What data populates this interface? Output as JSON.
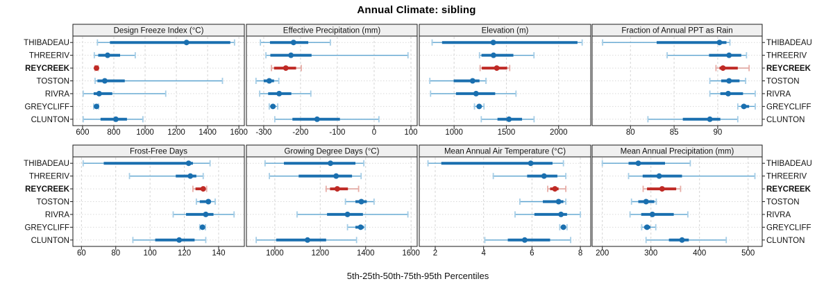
{
  "title": "Annual Climate: sibling",
  "caption": "5th-25th-50th-75th-95th Percentiles",
  "sites": [
    "THIBADEAU",
    "THREERIV",
    "REYCREEK",
    "TOSTON",
    "RIVRA",
    "GREYCLIFF",
    "CLUNTON"
  ],
  "highlight_site": "REYCREEK",
  "colors": {
    "normal": {
      "line": "#5ba3cf",
      "cap": "#a5cde6",
      "bar": "#1a6faf",
      "dot": "#1a6faf"
    },
    "highlight": {
      "line": "#d9938c",
      "cap": "#e7aca6",
      "bar": "#bf2a25",
      "dot": "#bf2a25"
    },
    "strip_bg": "#f0f0f0",
    "grid": "#d4d4d4",
    "row_guide": "#d9d9d9",
    "border": "#1a1a1a"
  },
  "chart_data": {
    "type": "scatter",
    "variant": "percentile-interval-dotplot",
    "percentiles": [
      5,
      25,
      50,
      75,
      95
    ],
    "rows": [
      "THIBADEAU",
      "THREERIV",
      "REYCREEK",
      "TOSTON",
      "RIVRA",
      "GREYCLIFF",
      "CLUNTON"
    ],
    "panels": [
      {
        "title": "Design Freeze Index (°C)",
        "grid_row": 0,
        "grid_col": 0,
        "xlim": [
          538,
          1635
        ],
        "ticks": [
          600,
          800,
          1000,
          1200,
          1400,
          1600
        ],
        "values": {
          "THIBADEAU": [
            695,
            775,
            1265,
            1545,
            1572
          ],
          "THREERIV": [
            675,
            700,
            760,
            840,
            937
          ],
          "REYCREEK": [
            679,
            684,
            689,
            695,
            700
          ],
          "TOSTON": [
            680,
            695,
            742,
            870,
            1495
          ],
          "RIVRA": [
            604,
            671,
            706,
            790,
            1132
          ],
          "GREYCLIFF": [
            671,
            680,
            689,
            696,
            702
          ],
          "CLUNTON": [
            604,
            715,
            813,
            884,
            986
          ]
        }
      },
      {
        "title": "Effective Precipitation (mm)",
        "grid_row": 0,
        "grid_col": 1,
        "xlim": [
          -347,
          117
        ],
        "ticks": [
          -300,
          -200,
          -100,
          0,
          100
        ],
        "values": {
          "THIBADEAU": [
            -309,
            -283,
            -219,
            -179,
            -119
          ],
          "THREERIV": [
            -294,
            -282,
            -226,
            -170,
            92
          ],
          "REYCREEK": [
            -279,
            -272,
            -240,
            -212,
            -198
          ],
          "TOSTON": [
            -321,
            -300,
            -285,
            -272,
            -259
          ],
          "RIVRA": [
            -311,
            -288,
            -258,
            -225,
            -172
          ],
          "GREYCLIFF": [
            -285,
            -280,
            -275,
            -268,
            -262
          ],
          "CLUNTON": [
            -270,
            -222,
            -155,
            -93,
            13
          ]
        }
      },
      {
        "title": "Elevation (m)",
        "grid_row": 0,
        "grid_col": 2,
        "xlim": [
          667,
          2307
        ],
        "ticks": [
          1000,
          1500,
          2000
        ],
        "values": {
          "THIBADEAU": [
            790,
            885,
            1375,
            2180,
            2225
          ],
          "THREERIV": [
            1243,
            1262,
            1377,
            1567,
            1764
          ],
          "REYCREEK": [
            1249,
            1265,
            1408,
            1508,
            1532
          ],
          "TOSTON": [
            768,
            996,
            1177,
            1243,
            1305
          ],
          "RIVRA": [
            775,
            1018,
            1210,
            1393,
            1592
          ],
          "GREYCLIFF": [
            1195,
            1220,
            1240,
            1262,
            1286
          ],
          "CLUNTON": [
            1260,
            1415,
            1525,
            1650,
            1765
          ]
        }
      },
      {
        "title": "Fraction of Annual PPT as Rain",
        "grid_row": 0,
        "grid_col": 3,
        "xlim": [
          75.6,
          95.1
        ],
        "ticks": [
          80,
          85,
          90
        ],
        "values": {
          "THIBADEAU": [
            76.8,
            83.0,
            90.2,
            91.0,
            91.4
          ],
          "THREERIV": [
            84.2,
            89.0,
            91.3,
            92.7,
            93.3
          ],
          "REYCREEK": [
            89.8,
            90.2,
            90.6,
            92.3,
            93.6
          ],
          "TOSTON": [
            89.1,
            90.4,
            91.3,
            92.5,
            93.2
          ],
          "RIVRA": [
            89.1,
            90.3,
            91.2,
            92.9,
            94.3
          ],
          "GREYCLIFF": [
            92.3,
            92.7,
            93.0,
            93.6,
            94.3
          ],
          "CLUNTON": [
            82.0,
            86.0,
            89.1,
            90.3,
            92.3
          ]
        }
      },
      {
        "title": "Frost-Free Days",
        "grid_row": 1,
        "grid_col": 0,
        "xlim": [
          55,
          155
        ],
        "ticks": [
          60,
          80,
          100,
          120,
          140
        ],
        "values": {
          "THIBADEAU": [
            61,
            73,
            122.5,
            125,
            135
          ],
          "THREERIV": [
            88,
            115,
            123.5,
            127,
            131
          ],
          "REYCREEK": [
            125,
            126.5,
            131,
            132,
            133
          ],
          "TOSTON": [
            127,
            129,
            134,
            135.5,
            138
          ],
          "RIVRA": [
            113.5,
            121,
            132.5,
            137,
            149
          ],
          "GREYCLIFF": [
            129,
            129.8,
            130.6,
            131.4,
            132.3
          ],
          "CLUNTON": [
            90,
            103,
            117,
            126,
            132.5
          ]
        }
      },
      {
        "title": "Growing Degree Days (°C)",
        "grid_row": 1,
        "grid_col": 1,
        "xlim": [
          875,
          1627
        ],
        "ticks": [
          1000,
          1200,
          1400,
          1600
        ],
        "values": {
          "THIBADEAU": [
            957,
            1040,
            1245,
            1355,
            1392
          ],
          "THREERIV": [
            976,
            1105,
            1270,
            1340,
            1380
          ],
          "REYCREEK": [
            1226,
            1243,
            1275,
            1322,
            1369
          ],
          "TOSTON": [
            1311,
            1355,
            1381,
            1405,
            1437
          ],
          "RIVRA": [
            1098,
            1230,
            1320,
            1388,
            1586
          ],
          "GREYCLIFF": [
            1320,
            1355,
            1378,
            1392,
            1398
          ],
          "CLUNTON": [
            918,
            1006,
            1144,
            1226,
            1360
          ]
        }
      },
      {
        "title": "Mean Annual Air Temperature (°C)",
        "grid_row": 1,
        "grid_col": 2,
        "xlim": [
          1.34,
          8.43
        ],
        "ticks": [
          2,
          4,
          6,
          8
        ],
        "values": {
          "THIBADEAU": [
            1.7,
            2.25,
            5.95,
            6.85,
            7.3
          ],
          "THREERIV": [
            4.4,
            5.8,
            6.5,
            7.05,
            7.4
          ],
          "REYCREEK": [
            6.65,
            6.75,
            6.95,
            7.1,
            7.4
          ],
          "TOSTON": [
            5.5,
            6.45,
            7.1,
            7.3,
            7.4
          ],
          "RIVRA": [
            5.3,
            6.1,
            7.2,
            7.45,
            8.0
          ],
          "GREYCLIFF": [
            7.15,
            7.25,
            7.3,
            7.4,
            7.45
          ],
          "CLUNTON": [
            4.05,
            5.0,
            5.7,
            6.75,
            7.6
          ]
        }
      },
      {
        "title": "Mean Annual Precipitation (mm)",
        "grid_row": 1,
        "grid_col": 3,
        "xlim": [
          179,
          529
        ],
        "ticks": [
          200,
          300,
          400,
          500
        ],
        "values": {
          "THIBADEAU": [
            200,
            254,
            274,
            329,
            381
          ],
          "THREERIV": [
            254,
            283,
            317,
            364,
            514
          ],
          "REYCREEK": [
            284,
            292,
            323,
            352,
            361
          ],
          "TOSTON": [
            260,
            274,
            290,
            307,
            311
          ],
          "RIVRA": [
            257,
            280,
            303,
            347,
            376
          ],
          "GREYCLIFF": [
            281,
            286,
            292,
            299,
            310
          ],
          "CLUNTON": [
            290,
            337,
            364,
            378,
            455
          ]
        }
      }
    ]
  }
}
